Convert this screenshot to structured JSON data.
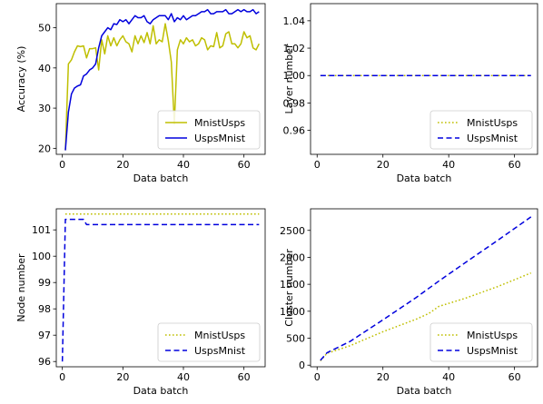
{
  "chart_data": [
    {
      "type": "line",
      "xlabel": "Data batch",
      "ylabel": "Accuracy (%)",
      "xlim": [
        -2,
        67
      ],
      "ylim": [
        18.5,
        56
      ],
      "xticks": [
        0,
        20,
        40,
        60
      ],
      "yticks": [
        20,
        30,
        40,
        50
      ],
      "legend_position": "lower-right",
      "series": [
        {
          "name": "MnistUsps",
          "color": "#bfbf00",
          "style": "solid",
          "x": [
            1,
            2,
            3,
            4,
            5,
            6,
            7,
            8,
            9,
            10,
            11,
            12,
            13,
            14,
            15,
            16,
            17,
            18,
            19,
            20,
            21,
            22,
            23,
            24,
            25,
            26,
            27,
            28,
            29,
            30,
            31,
            32,
            33,
            34,
            35,
            36,
            37,
            38,
            39,
            40,
            41,
            42,
            43,
            44,
            45,
            46,
            47,
            48,
            49,
            50,
            51,
            52,
            53,
            54,
            55,
            56,
            57,
            58,
            59,
            60,
            61,
            62,
            63,
            64,
            65
          ],
          "y": [
            19.5,
            41,
            42,
            44,
            45.5,
            45.3,
            45.5,
            42.5,
            44.8,
            44.8,
            45,
            39.5,
            47,
            43.5,
            48,
            45.5,
            47.5,
            45.5,
            47,
            48,
            46.5,
            46,
            44,
            48,
            46,
            48,
            46.3,
            48.8,
            46,
            50.5,
            46,
            47,
            46.5,
            51,
            46.8,
            41.5,
            26,
            44.5,
            47,
            46,
            47.5,
            46.5,
            47,
            45.5,
            46,
            47.5,
            47,
            44.5,
            45.5,
            45.3,
            48.8,
            45,
            45.5,
            48.5,
            49,
            46,
            46,
            45,
            46,
            49,
            47.5,
            48,
            45,
            44.5,
            46
          ]
        },
        {
          "name": "UspsMnist",
          "color": "#0000dd",
          "style": "solid",
          "x": [
            1,
            2,
            3,
            4,
            5,
            6,
            7,
            8,
            9,
            10,
            11,
            12,
            13,
            14,
            15,
            16,
            17,
            18,
            19,
            20,
            21,
            22,
            23,
            24,
            25,
            26,
            27,
            28,
            29,
            30,
            31,
            32,
            33,
            34,
            35,
            36,
            37,
            38,
            39,
            40,
            41,
            42,
            43,
            44,
            45,
            46,
            47,
            48,
            49,
            50,
            51,
            52,
            53,
            54,
            55,
            56,
            57,
            58,
            59,
            60,
            61,
            62,
            63,
            64,
            65
          ],
          "y": [
            19.5,
            29,
            33.5,
            35,
            35.5,
            35.8,
            38,
            38.5,
            39.5,
            40,
            41,
            45,
            48,
            49,
            50,
            49.5,
            51,
            50.8,
            52,
            51.5,
            52,
            51,
            52,
            53,
            52.5,
            52.5,
            53,
            51.5,
            51,
            52,
            52.5,
            53,
            53,
            53,
            52,
            53.5,
            51.5,
            52.5,
            52,
            53,
            52,
            52.5,
            53,
            53,
            53.5,
            54,
            54,
            54.5,
            53.5,
            53.5,
            54,
            54,
            54,
            54.5,
            53.5,
            53.5,
            54,
            54.5,
            54,
            54.5,
            54,
            54,
            54.5,
            53.5,
            54
          ]
        }
      ]
    },
    {
      "type": "line",
      "xlabel": "Data batch",
      "ylabel": "Layer number",
      "xlim": [
        -2,
        67
      ],
      "ylim": [
        0.9425,
        1.0525
      ],
      "xticks": [
        0,
        20,
        40,
        60
      ],
      "yticks": [
        0.96,
        0.98,
        1.0,
        1.02,
        1.04
      ],
      "ytick_labels": [
        "0.96",
        "0.98",
        "1.00",
        "1.02",
        "1.04"
      ],
      "legend_position": "lower-right",
      "series": [
        {
          "name": "MnistUsps",
          "color": "#bfbf00",
          "style": "dotted",
          "x": [
            1,
            65
          ],
          "y": [
            1,
            1
          ]
        },
        {
          "name": "UspsMnist",
          "color": "#0000dd",
          "style": "dashed",
          "x": [
            1,
            65
          ],
          "y": [
            1,
            1
          ]
        }
      ]
    },
    {
      "type": "line",
      "xlabel": "Data batch",
      "ylabel": "Node number",
      "xlim": [
        -2,
        67
      ],
      "ylim": [
        95.8,
        101.8
      ],
      "xticks": [
        0,
        20,
        40,
        60
      ],
      "yticks": [
        96,
        97,
        98,
        99,
        100,
        101
      ],
      "legend_position": "lower-right",
      "series": [
        {
          "name": "MnistUsps",
          "color": "#bfbf00",
          "style": "dotted",
          "x": [
            1,
            65
          ],
          "y": [
            101.6,
            101.6
          ]
        },
        {
          "name": "UspsMnist",
          "color": "#0000dd",
          "style": "dashed",
          "x": [
            0,
            1,
            7,
            8,
            65
          ],
          "y": [
            96,
            101.4,
            101.4,
            101.2,
            101.2
          ]
        }
      ]
    },
    {
      "type": "line",
      "xlabel": "Data batch",
      "ylabel": "Cluster number",
      "xlim": [
        -2,
        67
      ],
      "ylim": [
        -30,
        2900
      ],
      "xticks": [
        0,
        20,
        40,
        60
      ],
      "yticks": [
        0,
        500,
        1000,
        1500,
        2000,
        2500
      ],
      "legend_position": "lower-right",
      "series": [
        {
          "name": "MnistUsps",
          "color": "#bfbf00",
          "style": "dotted",
          "x": [
            1,
            3,
            10,
            20,
            30,
            34,
            37,
            45,
            55,
            65
          ],
          "y": [
            80,
            220,
            360,
            620,
            850,
            960,
            1090,
            1240,
            1460,
            1710
          ]
        },
        {
          "name": "UspsMnist",
          "color": "#0000dd",
          "style": "dashed",
          "x": [
            1,
            3,
            10,
            20,
            30,
            37,
            45,
            55,
            65
          ],
          "y": [
            90,
            230,
            440,
            840,
            1250,
            1560,
            1900,
            2320,
            2750
          ]
        }
      ]
    }
  ]
}
